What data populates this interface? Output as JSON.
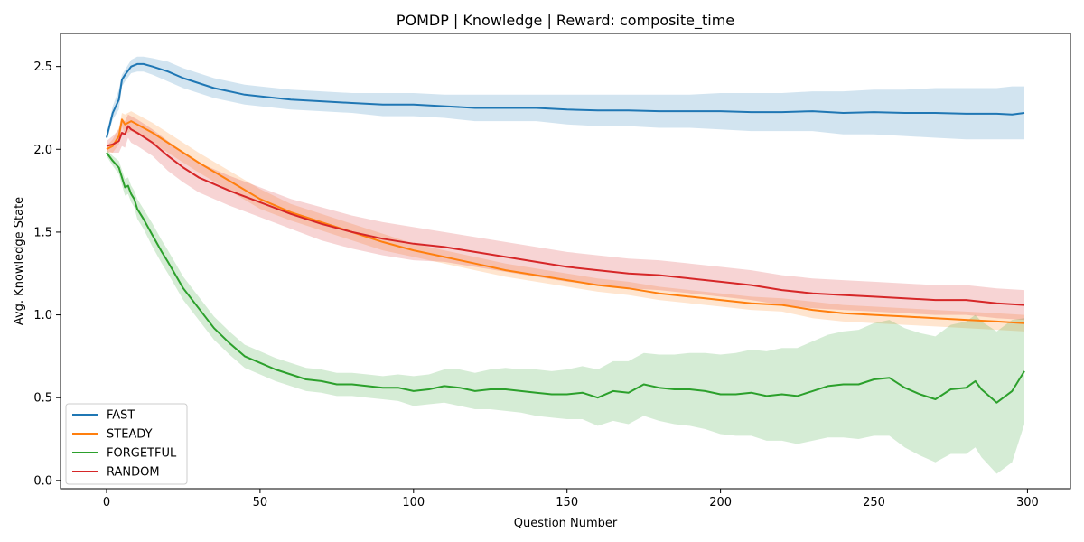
{
  "chart_data": {
    "type": "line",
    "title": "POMDP | Knowledge | Reward: composite_time",
    "xlabel": "Question Number",
    "ylabel": "Avg. Knowledge State",
    "xlim": [
      -15,
      314
    ],
    "ylim": [
      -0.05,
      2.7
    ],
    "xticks": [
      0,
      50,
      100,
      150,
      200,
      250,
      300
    ],
    "yticks": [
      0.0,
      0.5,
      1.0,
      1.5,
      2.0,
      2.5
    ],
    "xtick_labels": [
      "0",
      "50",
      "100",
      "150",
      "200",
      "250",
      "300"
    ],
    "ytick_labels": [
      "0.0",
      "0.5",
      "1.0",
      "1.5",
      "2.0",
      "2.5"
    ],
    "legend_position": "lower-left",
    "grid": false,
    "series": [
      {
        "name": "FAST",
        "color": "#1f77b4",
        "x": [
          0,
          2,
          4,
          5,
          6,
          8,
          10,
          12,
          15,
          20,
          25,
          30,
          35,
          40,
          45,
          50,
          60,
          70,
          80,
          90,
          100,
          110,
          120,
          130,
          140,
          150,
          160,
          170,
          180,
          190,
          200,
          210,
          220,
          230,
          240,
          250,
          260,
          270,
          280,
          290,
          295,
          299
        ],
        "values": [
          2.07,
          2.22,
          2.3,
          2.42,
          2.45,
          2.5,
          2.515,
          2.515,
          2.5,
          2.47,
          2.43,
          2.4,
          2.37,
          2.35,
          2.33,
          2.32,
          2.3,
          2.29,
          2.28,
          2.27,
          2.27,
          2.26,
          2.25,
          2.25,
          2.25,
          2.24,
          2.235,
          2.235,
          2.23,
          2.23,
          2.23,
          2.225,
          2.225,
          2.23,
          2.22,
          2.225,
          2.22,
          2.22,
          2.215,
          2.215,
          2.21,
          2.22
        ],
        "band_upper": [
          2.09,
          2.26,
          2.36,
          2.45,
          2.48,
          2.54,
          2.56,
          2.56,
          2.55,
          2.53,
          2.49,
          2.46,
          2.43,
          2.41,
          2.39,
          2.38,
          2.36,
          2.35,
          2.34,
          2.34,
          2.34,
          2.33,
          2.33,
          2.33,
          2.33,
          2.33,
          2.33,
          2.33,
          2.33,
          2.33,
          2.34,
          2.34,
          2.34,
          2.35,
          2.35,
          2.36,
          2.36,
          2.37,
          2.37,
          2.37,
          2.38,
          2.38
        ],
        "band_lower": [
          2.05,
          2.18,
          2.24,
          2.38,
          2.41,
          2.46,
          2.47,
          2.47,
          2.45,
          2.41,
          2.37,
          2.34,
          2.31,
          2.29,
          2.27,
          2.26,
          2.24,
          2.23,
          2.22,
          2.2,
          2.2,
          2.19,
          2.17,
          2.17,
          2.17,
          2.15,
          2.14,
          2.14,
          2.13,
          2.13,
          2.12,
          2.11,
          2.11,
          2.11,
          2.09,
          2.09,
          2.08,
          2.07,
          2.06,
          2.06,
          2.06,
          2.06
        ]
      },
      {
        "name": "STEADY",
        "color": "#ff7f0e",
        "x": [
          0,
          2,
          4,
          5,
          6,
          8,
          10,
          15,
          20,
          25,
          30,
          40,
          50,
          60,
          70,
          80,
          90,
          100,
          110,
          120,
          130,
          140,
          150,
          160,
          170,
          180,
          190,
          200,
          210,
          220,
          230,
          240,
          250,
          260,
          270,
          280,
          290,
          299
        ],
        "values": [
          2.0,
          2.02,
          2.08,
          2.18,
          2.15,
          2.17,
          2.15,
          2.1,
          2.04,
          1.98,
          1.92,
          1.81,
          1.7,
          1.62,
          1.56,
          1.5,
          1.44,
          1.39,
          1.35,
          1.31,
          1.27,
          1.24,
          1.21,
          1.18,
          1.16,
          1.13,
          1.11,
          1.09,
          1.07,
          1.06,
          1.03,
          1.01,
          1.0,
          0.99,
          0.98,
          0.97,
          0.96,
          0.95
        ],
        "band_upper": [
          2.02,
          2.06,
          2.13,
          2.22,
          2.21,
          2.23,
          2.21,
          2.16,
          2.1,
          2.04,
          1.98,
          1.87,
          1.76,
          1.67,
          1.61,
          1.55,
          1.49,
          1.43,
          1.39,
          1.35,
          1.31,
          1.28,
          1.25,
          1.22,
          1.2,
          1.17,
          1.15,
          1.13,
          1.11,
          1.1,
          1.08,
          1.06,
          1.05,
          1.04,
          1.03,
          1.02,
          1.01,
          1.0
        ],
        "band_lower": [
          1.98,
          1.98,
          2.03,
          2.14,
          2.09,
          2.11,
          2.09,
          2.04,
          1.98,
          1.92,
          1.86,
          1.75,
          1.64,
          1.57,
          1.51,
          1.45,
          1.39,
          1.35,
          1.31,
          1.27,
          1.23,
          1.2,
          1.17,
          1.14,
          1.12,
          1.09,
          1.07,
          1.05,
          1.03,
          1.02,
          0.98,
          0.96,
          0.95,
          0.94,
          0.93,
          0.92,
          0.91,
          0.9
        ]
      },
      {
        "name": "FORGETFUL",
        "color": "#2ca02c",
        "x": [
          0,
          2,
          4,
          6,
          7,
          8,
          9,
          10,
          12,
          15,
          18,
          20,
          25,
          30,
          35,
          40,
          45,
          50,
          55,
          60,
          65,
          70,
          75,
          80,
          85,
          90,
          95,
          100,
          105,
          110,
          115,
          120,
          125,
          130,
          135,
          140,
          145,
          150,
          155,
          160,
          165,
          170,
          175,
          180,
          185,
          190,
          195,
          200,
          205,
          210,
          215,
          220,
          225,
          230,
          235,
          240,
          245,
          250,
          255,
          260,
          265,
          270,
          275,
          280,
          283,
          285,
          290,
          295,
          299
        ],
        "values": [
          1.98,
          1.93,
          1.89,
          1.77,
          1.78,
          1.73,
          1.7,
          1.64,
          1.58,
          1.48,
          1.38,
          1.32,
          1.16,
          1.04,
          0.92,
          0.83,
          0.75,
          0.71,
          0.67,
          0.64,
          0.61,
          0.6,
          0.58,
          0.58,
          0.57,
          0.56,
          0.56,
          0.54,
          0.55,
          0.57,
          0.56,
          0.54,
          0.55,
          0.55,
          0.54,
          0.53,
          0.52,
          0.52,
          0.53,
          0.5,
          0.54,
          0.53,
          0.58,
          0.56,
          0.55,
          0.55,
          0.54,
          0.52,
          0.52,
          0.53,
          0.51,
          0.52,
          0.51,
          0.54,
          0.57,
          0.58,
          0.58,
          0.61,
          0.62,
          0.56,
          0.52,
          0.49,
          0.55,
          0.56,
          0.6,
          0.55,
          0.47,
          0.54,
          0.66
        ],
        "band_upper": [
          2.0,
          1.96,
          1.93,
          1.82,
          1.83,
          1.78,
          1.75,
          1.7,
          1.64,
          1.55,
          1.45,
          1.39,
          1.23,
          1.11,
          0.99,
          0.9,
          0.82,
          0.78,
          0.74,
          0.71,
          0.68,
          0.67,
          0.65,
          0.65,
          0.64,
          0.63,
          0.64,
          0.63,
          0.64,
          0.67,
          0.67,
          0.65,
          0.67,
          0.68,
          0.67,
          0.67,
          0.66,
          0.67,
          0.69,
          0.67,
          0.72,
          0.72,
          0.77,
          0.76,
          0.76,
          0.77,
          0.77,
          0.76,
          0.77,
          0.79,
          0.78,
          0.8,
          0.8,
          0.84,
          0.88,
          0.9,
          0.91,
          0.95,
          0.97,
          0.92,
          0.89,
          0.87,
          0.94,
          0.96,
          1.0,
          0.96,
          0.9,
          0.97,
          0.98
        ],
        "band_lower": [
          1.96,
          1.9,
          1.85,
          1.72,
          1.73,
          1.68,
          1.65,
          1.58,
          1.52,
          1.41,
          1.31,
          1.25,
          1.09,
          0.97,
          0.85,
          0.76,
          0.68,
          0.64,
          0.6,
          0.57,
          0.54,
          0.53,
          0.51,
          0.51,
          0.5,
          0.49,
          0.48,
          0.45,
          0.46,
          0.47,
          0.45,
          0.43,
          0.43,
          0.42,
          0.41,
          0.39,
          0.38,
          0.37,
          0.37,
          0.33,
          0.36,
          0.34,
          0.39,
          0.36,
          0.34,
          0.33,
          0.31,
          0.28,
          0.27,
          0.27,
          0.24,
          0.24,
          0.22,
          0.24,
          0.26,
          0.26,
          0.25,
          0.27,
          0.27,
          0.2,
          0.15,
          0.11,
          0.16,
          0.16,
          0.2,
          0.14,
          0.04,
          0.11,
          0.34
        ]
      },
      {
        "name": "RANDOM",
        "color": "#d62728",
        "x": [
          0,
          2,
          4,
          5,
          6,
          7,
          8,
          10,
          15,
          20,
          25,
          30,
          40,
          50,
          60,
          70,
          80,
          90,
          100,
          110,
          120,
          130,
          140,
          150,
          160,
          170,
          180,
          190,
          200,
          210,
          220,
          230,
          240,
          250,
          260,
          270,
          280,
          290,
          299
        ],
        "values": [
          2.02,
          2.03,
          2.05,
          2.1,
          2.09,
          2.14,
          2.12,
          2.1,
          2.04,
          1.96,
          1.89,
          1.83,
          1.75,
          1.68,
          1.61,
          1.55,
          1.5,
          1.46,
          1.43,
          1.41,
          1.38,
          1.35,
          1.32,
          1.29,
          1.27,
          1.25,
          1.24,
          1.22,
          1.2,
          1.18,
          1.15,
          1.13,
          1.12,
          1.11,
          1.1,
          1.09,
          1.09,
          1.07,
          1.06
        ],
        "band_upper": [
          2.05,
          2.08,
          2.12,
          2.18,
          2.17,
          2.21,
          2.2,
          2.18,
          2.12,
          2.05,
          1.98,
          1.92,
          1.84,
          1.77,
          1.7,
          1.65,
          1.6,
          1.56,
          1.53,
          1.5,
          1.47,
          1.44,
          1.41,
          1.38,
          1.36,
          1.34,
          1.33,
          1.31,
          1.29,
          1.27,
          1.24,
          1.22,
          1.21,
          1.2,
          1.19,
          1.18,
          1.18,
          1.16,
          1.15
        ],
        "band_lower": [
          1.99,
          1.98,
          1.98,
          2.02,
          2.01,
          2.07,
          2.04,
          2.02,
          1.96,
          1.87,
          1.8,
          1.74,
          1.66,
          1.59,
          1.52,
          1.45,
          1.4,
          1.36,
          1.33,
          1.32,
          1.29,
          1.26,
          1.23,
          1.2,
          1.18,
          1.16,
          1.15,
          1.13,
          1.11,
          1.09,
          1.06,
          1.04,
          1.03,
          1.02,
          1.01,
          1.0,
          1.0,
          0.98,
          0.97
        ]
      }
    ]
  }
}
